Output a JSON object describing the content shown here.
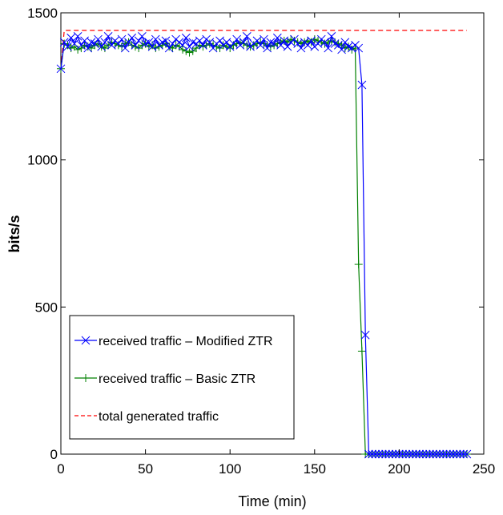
{
  "chart_data": {
    "type": "line",
    "title": "",
    "xlabel": "Time (min)",
    "ylabel": "bits/s",
    "xlim": [
      0,
      250
    ],
    "ylim": [
      0,
      1500
    ],
    "xticks": [
      0,
      50,
      100,
      150,
      200,
      250
    ],
    "yticks": [
      0,
      500,
      1000,
      1500
    ],
    "grid": false,
    "legend_position": "bottom-left",
    "series": [
      {
        "name": "received traffic – Modified ZTR",
        "color": "#0000ff",
        "marker": "x",
        "x": [
          0,
          2,
          4,
          6,
          8,
          10,
          12,
          14,
          16,
          18,
          20,
          22,
          24,
          26,
          28,
          30,
          32,
          34,
          36,
          38,
          40,
          42,
          44,
          46,
          48,
          50,
          52,
          54,
          56,
          58,
          60,
          62,
          64,
          66,
          68,
          70,
          72,
          74,
          76,
          78,
          80,
          82,
          84,
          86,
          88,
          90,
          92,
          94,
          96,
          98,
          100,
          102,
          104,
          106,
          108,
          110,
          112,
          114,
          116,
          118,
          120,
          122,
          124,
          126,
          128,
          130,
          132,
          134,
          136,
          138,
          140,
          142,
          144,
          146,
          148,
          150,
          152,
          154,
          156,
          158,
          160,
          162,
          164,
          166,
          168,
          170,
          172,
          174,
          176,
          178,
          180,
          182,
          184,
          186,
          188,
          190,
          192,
          194,
          196,
          198,
          200,
          202,
          204,
          206,
          208,
          210,
          212,
          214,
          216,
          218,
          220,
          222,
          224,
          226,
          228,
          230,
          232,
          234,
          236,
          238,
          240
        ],
        "values": [
          1310,
          1400,
          1385,
          1415,
          1395,
          1420,
          1390,
          1405,
          1380,
          1400,
          1395,
          1410,
          1385,
          1400,
          1420,
          1390,
          1405,
          1395,
          1410,
          1380,
          1400,
          1415,
          1390,
          1405,
          1420,
          1395,
          1400,
          1385,
          1410,
          1390,
          1400,
          1405,
          1380,
          1395,
          1410,
          1400,
          1390,
          1415,
          1385,
          1400,
          1395,
          1405,
          1390,
          1410,
          1400,
          1380,
          1395,
          1405,
          1390,
          1400,
          1385,
          1395,
          1410,
          1390,
          1400,
          1420,
          1385,
          1395,
          1405,
          1390,
          1410,
          1380,
          1400,
          1395,
          1415,
          1390,
          1405,
          1385,
          1400,
          1410,
          1395,
          1380,
          1400,
          1390,
          1405,
          1385,
          1395,
          1410,
          1400,
          1380,
          1420,
          1395,
          1390,
          1375,
          1400,
          1385,
          1380,
          1390,
          1380,
          1255,
          405,
          0,
          0,
          0,
          0,
          0,
          0,
          0,
          0,
          0,
          0,
          0,
          0,
          0,
          0,
          0,
          0,
          0,
          0,
          0,
          0,
          0,
          0,
          0,
          0,
          0,
          0,
          0,
          0,
          0,
          0
        ]
      },
      {
        "name": "received traffic – Basic ZTR",
        "color": "#008000",
        "marker": "+",
        "x": [
          0,
          2,
          4,
          6,
          8,
          10,
          12,
          14,
          16,
          18,
          20,
          22,
          24,
          26,
          28,
          30,
          32,
          34,
          36,
          38,
          40,
          42,
          44,
          46,
          48,
          50,
          52,
          54,
          56,
          58,
          60,
          62,
          64,
          66,
          68,
          70,
          72,
          74,
          76,
          78,
          80,
          82,
          84,
          86,
          88,
          90,
          92,
          94,
          96,
          98,
          100,
          102,
          104,
          106,
          108,
          110,
          112,
          114,
          116,
          118,
          120,
          122,
          124,
          126,
          128,
          130,
          132,
          134,
          136,
          138,
          140,
          142,
          144,
          146,
          148,
          150,
          152,
          154,
          156,
          158,
          160,
          162,
          164,
          166,
          168,
          170,
          172,
          174,
          176,
          178,
          180,
          182,
          184,
          186,
          188,
          190,
          192,
          194,
          196,
          198,
          200,
          202,
          204,
          206,
          208,
          210,
          212,
          214,
          216,
          218,
          220,
          222,
          224,
          226,
          228,
          230,
          232,
          234,
          236,
          238,
          240
        ],
        "values": [
          1310,
          1395,
          1390,
          1380,
          1385,
          1375,
          1380,
          1390,
          1385,
          1380,
          1390,
          1395,
          1385,
          1380,
          1390,
          1400,
          1395,
          1390,
          1385,
          1395,
          1400,
          1390,
          1385,
          1380,
          1390,
          1395,
          1385,
          1390,
          1380,
          1385,
          1390,
          1395,
          1385,
          1380,
          1390,
          1385,
          1375,
          1370,
          1365,
          1370,
          1380,
          1390,
          1385,
          1390,
          1395,
          1390,
          1385,
          1380,
          1390,
          1385,
          1380,
          1390,
          1395,
          1400,
          1395,
          1390,
          1385,
          1390,
          1395,
          1400,
          1395,
          1390,
          1385,
          1390,
          1395,
          1400,
          1405,
          1400,
          1410,
          1405,
          1400,
          1395,
          1400,
          1405,
          1400,
          1410,
          1405,
          1400,
          1395,
          1400,
          1405,
          1400,
          1395,
          1390,
          1380,
          1385,
          1375,
          1380,
          645,
          350,
          0,
          0,
          0,
          0,
          0,
          0,
          0,
          0,
          0,
          0,
          0,
          0,
          0,
          0,
          0,
          0,
          0,
          0,
          0,
          0,
          0,
          0,
          0,
          0,
          0,
          0,
          0,
          0,
          0,
          0,
          0
        ]
      },
      {
        "name": "total generated traffic",
        "color": "#ff0000",
        "marker": "none",
        "dashed": true,
        "x": [
          0,
          2,
          4,
          6,
          8,
          240
        ],
        "values": [
          1310,
          1440,
          1440,
          1440,
          1440,
          1440
        ]
      }
    ]
  }
}
